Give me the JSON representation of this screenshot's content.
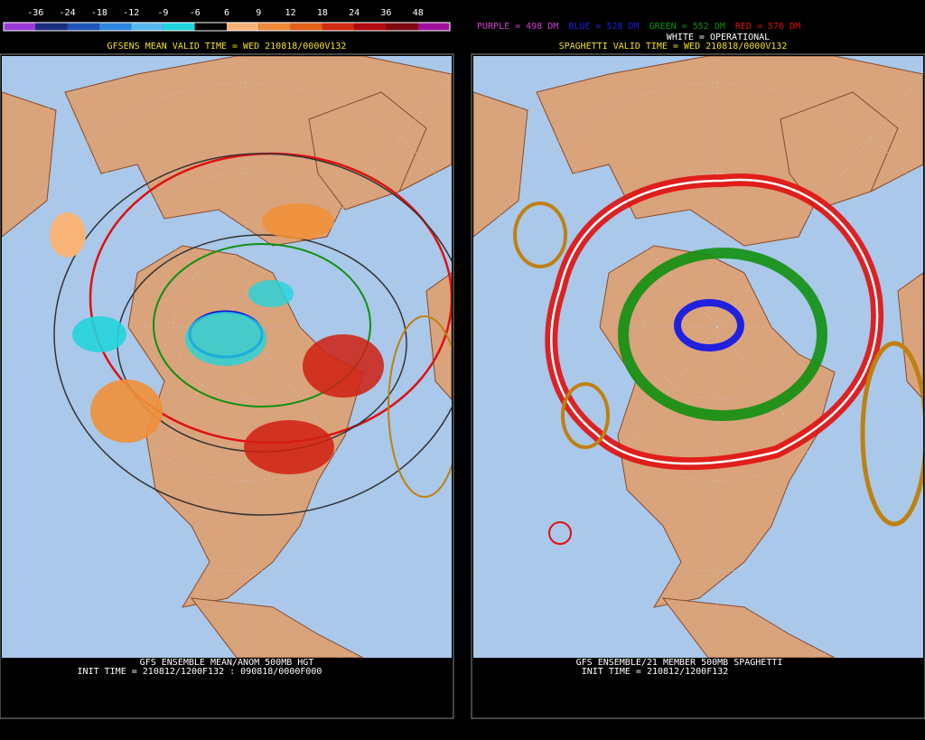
{
  "colorbar": {
    "labels": [
      "-36",
      "-24",
      "-18",
      "-12",
      "-9",
      "-6",
      "6",
      "9",
      "12",
      "18",
      "24",
      "36",
      "48"
    ],
    "colors": [
      "#9a3ad8",
      "#1a2f80",
      "#1f55b8",
      "#2f86e0",
      "#55b8ee",
      "#22d4dc",
      "#000000",
      "#f8b478",
      "#f08a3a",
      "#e2601a",
      "#cf2a12",
      "#b00a10",
      "#7e0a12",
      "#a0109c"
    ]
  },
  "left_panel": {
    "header": "GFSENS MEAN VALID TIME = WED 210818/0000V132",
    "footer": [
      "GFS ENSEMBLE MEAN/ANOM 500MB HGT",
      "INIT TIME = 210812/1200F132 : 090818/0000F000"
    ]
  },
  "right_panel": {
    "legend": [
      {
        "text": "PURPLE = 498 DM",
        "color": "#d040d0"
      },
      {
        "text": "BLUE = 528 DM",
        "color": "#2020e0"
      },
      {
        "text": "GREEN = 552 DM",
        "color": "#109010"
      },
      {
        "text": "RED = 576 DM",
        "color": "#e01010"
      }
    ],
    "operational": "WHITE = OPERATIONAL",
    "header": "SPAGHETTI VALID TIME = WED 210818/0000V132",
    "footer": [
      "GFS ENSEMBLE/21 MEMBER 500MB SPAGHETTI",
      "INIT TIME = 210812/1200F132"
    ]
  }
}
